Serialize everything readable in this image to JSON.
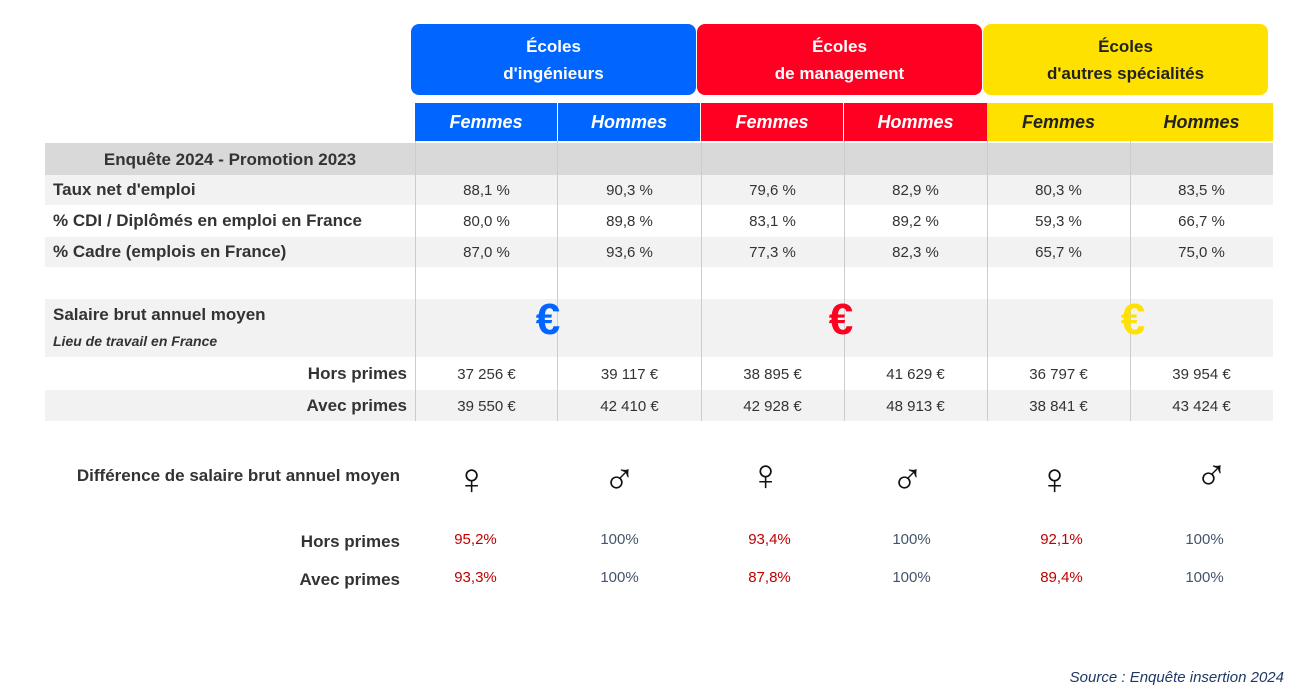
{
  "schools": [
    {
      "line1": "Écoles",
      "line2": "d'ingénieurs",
      "color": "#0066ff"
    },
    {
      "line1": "Écoles",
      "line2": "de management",
      "color": "#ff0022"
    },
    {
      "line1": "Écoles",
      "line2": "d'autres spécialités",
      "color": "#ffe100"
    }
  ],
  "genders": [
    "Femmes",
    "Hommes",
    "Femmes",
    "Hommes",
    "Femmes",
    "Hommes"
  ],
  "survey_title": "Enquête 2024 - Promotion 2023",
  "rows": [
    {
      "label": "Taux net d'emploi",
      "values": [
        "88,1 %",
        "90,3 %",
        "79,6 %",
        "82,9 %",
        "80,3 %",
        "83,5 %"
      ]
    },
    {
      "label": "% CDI / Diplômés en emploi en France",
      "values": [
        "80,0 %",
        "89,8 %",
        "83,1 %",
        "89,2 %",
        "59,3 %",
        "66,7 %"
      ]
    },
    {
      "label": "% Cadre (emplois en France)",
      "values": [
        "87,0 %",
        "93,6 %",
        "77,3 %",
        "82,3 %",
        "65,7 %",
        "75,0 %"
      ]
    }
  ],
  "salary": {
    "title": "Salaire brut annuel moyen",
    "subtitle": "Lieu de travail en France",
    "euro_symbol": "€",
    "euro_colors": [
      "#0066ff",
      "#ff0022",
      "#ffe100"
    ],
    "rows": [
      {
        "label": "Hors primes",
        "values": [
          "37 256 €",
          "39 117 €",
          "38 895 €",
          "41 629 €",
          "36 797 €",
          "39 954 €"
        ]
      },
      {
        "label": "Avec primes",
        "values": [
          "39 550 €",
          "42 410 €",
          "42 928 €",
          "48 913 €",
          "38 841 €",
          "43 424 €"
        ]
      }
    ]
  },
  "difference": {
    "title": "Différence de salaire brut annuel moyen",
    "symbols": [
      "♀",
      "♂",
      "♀",
      "♂",
      "♀",
      "♂"
    ],
    "rows": [
      {
        "label": "Hors primes",
        "values": [
          "95,2%",
          "100%",
          "93,4%",
          "100%",
          "92,1%",
          "100%"
        ]
      },
      {
        "label": "Avec primes",
        "values": [
          "93,3%",
          "100%",
          "87,8%",
          "100%",
          "89,4%",
          "100%"
        ]
      }
    ]
  },
  "source": "Source : Enquête insertion 2024"
}
